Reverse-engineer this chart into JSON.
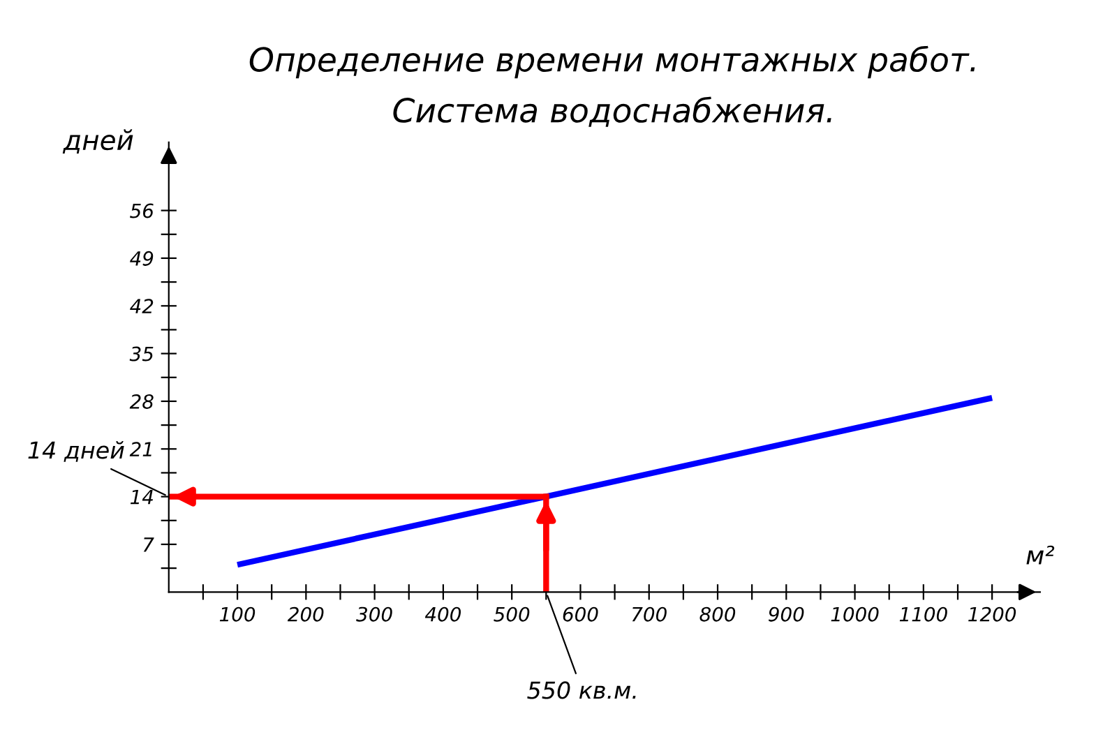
{
  "chart_data": {
    "type": "line",
    "title": "Определение времени монтажных работ.",
    "subtitle": "Система водоснабжения.",
    "xlabel": "м²",
    "ylabel": "дней",
    "x": [
      100,
      1200
    ],
    "series": [
      {
        "color": "#0000ff",
        "values": [
          4,
          28.5
        ]
      }
    ],
    "xlim": [
      0,
      1270
    ],
    "ylim": [
      0,
      66
    ],
    "xticks": [
      {
        "value": 50,
        "label": null
      },
      100,
      {
        "value": 150,
        "label": null
      },
      200,
      {
        "value": 250,
        "label": null
      },
      300,
      {
        "value": 350,
        "label": null
      },
      400,
      {
        "value": 450,
        "label": null
      },
      500,
      {
        "value": 550,
        "label": null
      },
      600,
      {
        "value": 650,
        "label": null
      },
      700,
      {
        "value": 750,
        "label": null
      },
      800,
      {
        "value": 850,
        "label": null
      },
      900,
      {
        "value": 950,
        "label": null
      },
      1000,
      {
        "value": 1050,
        "label": null
      },
      1100,
      {
        "value": 1150,
        "label": null
      },
      1200
    ],
    "yticks": [
      {
        "value": 3.5,
        "label": null
      },
      7,
      {
        "value": 10.5,
        "label": null
      },
      14,
      {
        "value": 17.5,
        "label": null
      },
      21,
      {
        "value": 24.5,
        "label": null
      },
      28,
      {
        "value": 31.5,
        "label": null
      },
      35,
      {
        "value": 38.5,
        "label": null
      },
      42,
      {
        "value": 45.5,
        "label": null
      },
      49,
      {
        "value": 52.5,
        "label": null
      },
      56
    ],
    "ref_lines": [
      {
        "axis": "y",
        "value": 14,
        "label": "14 дней",
        "color": "#ff0000"
      },
      {
        "axis": "x",
        "value": 550,
        "label": "550 кв.м.",
        "color": "#ff0000"
      }
    ],
    "grid": false
  }
}
